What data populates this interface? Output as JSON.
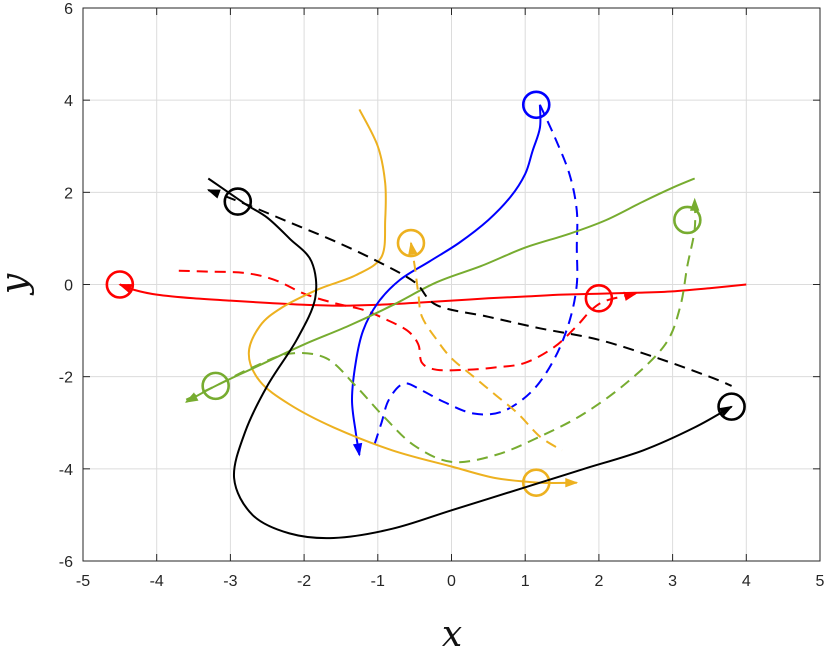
{
  "chart_data": {
    "type": "line",
    "title": "",
    "xlabel": "x",
    "ylabel": "y",
    "xlim": [
      -5,
      5
    ],
    "ylim": [
      -6,
      6
    ],
    "xticks": [
      -5,
      -4,
      -3,
      -2,
      -1,
      0,
      1,
      2,
      3,
      4,
      5
    ],
    "yticks": [
      -6,
      -4,
      -2,
      0,
      2,
      4,
      6
    ],
    "xtick_labels": [
      "-5",
      "-4",
      "-3",
      "-2",
      "-1",
      "0",
      "1",
      "2",
      "3",
      "4",
      "5"
    ],
    "ytick_labels": [
      "-6",
      "-4",
      "-2",
      "0",
      "2",
      "4",
      "6"
    ],
    "grid": true,
    "legend": "none",
    "colors": {
      "red": "#ff0000",
      "blue": "#0000ff",
      "orange": "#edb120",
      "green": "#77ac30",
      "black": "#000000"
    },
    "series": [
      {
        "color": "#ff0000",
        "style": "solid",
        "points": [
          [
            4.0,
            0.0
          ],
          [
            3.5,
            -0.08
          ],
          [
            3.0,
            -0.15
          ],
          [
            2.5,
            -0.18
          ],
          [
            2.0,
            -0.2
          ],
          [
            1.5,
            -0.22
          ],
          [
            1.0,
            -0.26
          ],
          [
            0.5,
            -0.3
          ],
          [
            0.0,
            -0.35
          ],
          [
            -0.5,
            -0.4
          ],
          [
            -1.0,
            -0.44
          ],
          [
            -1.5,
            -0.46
          ],
          [
            -2.0,
            -0.44
          ],
          [
            -2.5,
            -0.4
          ],
          [
            -3.0,
            -0.35
          ],
          [
            -3.5,
            -0.3
          ],
          [
            -4.0,
            -0.22
          ],
          [
            -4.3,
            -0.12
          ],
          [
            -4.5,
            0.0
          ]
        ],
        "circle": [
          -4.5,
          0.0
        ],
        "arrow": "end"
      },
      {
        "color": "#ff0000",
        "style": "dashed",
        "points": [
          [
            -3.7,
            0.3
          ],
          [
            -3.3,
            0.28
          ],
          [
            -2.8,
            0.25
          ],
          [
            -2.4,
            0.1
          ],
          [
            -2.0,
            -0.2
          ],
          [
            -1.6,
            -0.4
          ],
          [
            -1.2,
            -0.55
          ],
          [
            -0.9,
            -0.75
          ],
          [
            -0.6,
            -1.0
          ],
          [
            -0.45,
            -1.3
          ],
          [
            -0.4,
            -1.7
          ],
          [
            -0.2,
            -1.85
          ],
          [
            0.2,
            -1.85
          ],
          [
            0.6,
            -1.8
          ],
          [
            1.0,
            -1.7
          ],
          [
            1.4,
            -1.35
          ],
          [
            1.7,
            -0.9
          ],
          [
            1.9,
            -0.55
          ],
          [
            2.1,
            -0.35
          ],
          [
            2.5,
            -0.2
          ]
        ],
        "circle": [
          2.0,
          -0.3
        ],
        "arrow": "end"
      },
      {
        "color": "#0000ff",
        "style": "solid",
        "points": [
          [
            -1.25,
            -3.7
          ],
          [
            -1.3,
            -3.2
          ],
          [
            -1.35,
            -2.5
          ],
          [
            -1.3,
            -1.7
          ],
          [
            -1.2,
            -1.0
          ],
          [
            -1.0,
            -0.4
          ],
          [
            -0.7,
            0.1
          ],
          [
            -0.3,
            0.5
          ],
          [
            0.1,
            0.9
          ],
          [
            0.5,
            1.4
          ],
          [
            0.8,
            1.9
          ],
          [
            1.0,
            2.4
          ],
          [
            1.1,
            2.9
          ],
          [
            1.2,
            3.4
          ],
          [
            1.2,
            3.9
          ]
        ],
        "circle": [
          1.15,
          3.9
        ],
        "arrow": "start"
      },
      {
        "color": "#0000ff",
        "style": "dashed",
        "points": [
          [
            1.2,
            3.9
          ],
          [
            1.4,
            3.2
          ],
          [
            1.6,
            2.4
          ],
          [
            1.7,
            1.6
          ],
          [
            1.7,
            0.8
          ],
          [
            1.7,
            0.0
          ],
          [
            1.6,
            -0.8
          ],
          [
            1.4,
            -1.6
          ],
          [
            1.1,
            -2.3
          ],
          [
            0.7,
            -2.75
          ],
          [
            0.3,
            -2.8
          ],
          [
            -0.1,
            -2.55
          ],
          [
            -0.4,
            -2.3
          ],
          [
            -0.65,
            -2.15
          ],
          [
            -0.85,
            -2.5
          ],
          [
            -0.95,
            -3.0
          ],
          [
            -1.05,
            -3.5
          ]
        ],
        "circle": null,
        "arrow": "none"
      },
      {
        "color": "#edb120",
        "style": "solid",
        "points": [
          [
            -1.25,
            3.8
          ],
          [
            -1.0,
            3.0
          ],
          [
            -0.9,
            2.2
          ],
          [
            -0.9,
            1.4
          ],
          [
            -0.95,
            0.6
          ],
          [
            -1.3,
            0.2
          ],
          [
            -1.8,
            -0.1
          ],
          [
            -2.3,
            -0.5
          ],
          [
            -2.6,
            -0.9
          ],
          [
            -2.75,
            -1.5
          ],
          [
            -2.6,
            -2.1
          ],
          [
            -2.2,
            -2.6
          ],
          [
            -1.6,
            -3.1
          ],
          [
            -0.8,
            -3.6
          ],
          [
            0.0,
            -3.95
          ],
          [
            0.6,
            -4.2
          ],
          [
            1.2,
            -4.3
          ],
          [
            1.7,
            -4.3
          ]
        ],
        "circle": [
          1.15,
          -4.3
        ],
        "arrow": "end"
      },
      {
        "color": "#edb120",
        "style": "dashed",
        "points": [
          [
            -0.55,
            0.9
          ],
          [
            -0.5,
            0.4
          ],
          [
            -0.45,
            -0.2
          ],
          [
            -0.4,
            -0.7
          ],
          [
            -0.2,
            -1.2
          ],
          [
            0.0,
            -1.6
          ],
          [
            0.3,
            -2.0
          ],
          [
            0.6,
            -2.4
          ],
          [
            0.9,
            -2.8
          ],
          [
            1.2,
            -3.3
          ],
          [
            1.5,
            -3.6
          ]
        ],
        "circle": [
          -0.55,
          0.9
        ],
        "arrow": "start"
      },
      {
        "color": "#77ac30",
        "style": "solid",
        "points": [
          [
            -3.6,
            -2.55
          ],
          [
            -3.2,
            -2.2
          ],
          [
            -2.6,
            -1.75
          ],
          [
            -2.0,
            -1.3
          ],
          [
            -1.4,
            -0.9
          ],
          [
            -0.8,
            -0.45
          ],
          [
            -0.2,
            0.05
          ],
          [
            0.4,
            0.4
          ],
          [
            1.0,
            0.8
          ],
          [
            1.6,
            1.1
          ],
          [
            2.1,
            1.4
          ],
          [
            2.6,
            1.8
          ],
          [
            3.0,
            2.1
          ],
          [
            3.3,
            2.3
          ]
        ],
        "circle": [
          -3.2,
          -2.2
        ],
        "arrow": "start"
      },
      {
        "color": "#77ac30",
        "style": "dashed",
        "points": [
          [
            -3.6,
            -2.5
          ],
          [
            -3.2,
            -2.2
          ],
          [
            -2.7,
            -1.8
          ],
          [
            -2.2,
            -1.5
          ],
          [
            -1.7,
            -1.6
          ],
          [
            -1.3,
            -2.2
          ],
          [
            -0.9,
            -2.9
          ],
          [
            -0.5,
            -3.5
          ],
          [
            0.0,
            -3.85
          ],
          [
            0.6,
            -3.7
          ],
          [
            1.2,
            -3.3
          ],
          [
            1.8,
            -2.8
          ],
          [
            2.4,
            -2.1
          ],
          [
            2.9,
            -1.3
          ],
          [
            3.1,
            -0.5
          ],
          [
            3.2,
            0.4
          ],
          [
            3.3,
            1.2
          ],
          [
            3.3,
            1.85
          ]
        ],
        "circle": [
          3.2,
          1.4
        ],
        "arrow": "end"
      },
      {
        "color": "#000000",
        "style": "solid",
        "points": [
          [
            3.8,
            -2.65
          ],
          [
            3.3,
            -3.1
          ],
          [
            2.6,
            -3.6
          ],
          [
            1.8,
            -4.0
          ],
          [
            1.0,
            -4.4
          ],
          [
            0.0,
            -4.9
          ],
          [
            -0.8,
            -5.3
          ],
          [
            -1.6,
            -5.5
          ],
          [
            -2.2,
            -5.4
          ],
          [
            -2.7,
            -5.0
          ],
          [
            -2.95,
            -4.2
          ],
          [
            -2.8,
            -3.2
          ],
          [
            -2.5,
            -2.2
          ],
          [
            -2.1,
            -1.2
          ],
          [
            -1.85,
            -0.3
          ],
          [
            -1.9,
            0.5
          ],
          [
            -2.2,
            1.0
          ],
          [
            -2.5,
            1.45
          ],
          [
            -2.8,
            1.75
          ],
          [
            -3.3,
            2.3
          ]
        ],
        "circle": [
          -2.9,
          1.8
        ],
        "arrow": "start"
      },
      {
        "color": "#000000",
        "style": "dashed",
        "points": [
          [
            -3.3,
            2.05
          ],
          [
            -2.8,
            1.75
          ],
          [
            -2.2,
            1.35
          ],
          [
            -1.6,
            0.95
          ],
          [
            -1.0,
            0.5
          ],
          [
            -0.5,
            0.05
          ],
          [
            -0.2,
            -0.45
          ],
          [
            0.5,
            -0.7
          ],
          [
            1.2,
            -0.95
          ],
          [
            2.0,
            -1.2
          ],
          [
            2.8,
            -1.6
          ],
          [
            3.5,
            -2.0
          ],
          [
            3.8,
            -2.2
          ]
        ],
        "circle": [
          3.8,
          -2.65
        ],
        "arrow": "start"
      }
    ]
  }
}
